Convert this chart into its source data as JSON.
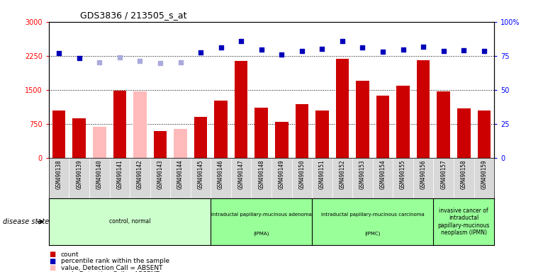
{
  "title": "GDS3836 / 213505_s_at",
  "samples": [
    "GSM490138",
    "GSM490139",
    "GSM490140",
    "GSM490141",
    "GSM490142",
    "GSM490143",
    "GSM490144",
    "GSM490145",
    "GSM490146",
    "GSM490147",
    "GSM490148",
    "GSM490149",
    "GSM490150",
    "GSM490151",
    "GSM490152",
    "GSM490153",
    "GSM490154",
    "GSM490155",
    "GSM490156",
    "GSM490157",
    "GSM490158",
    "GSM490159"
  ],
  "count_values": [
    1050,
    870,
    null,
    1480,
    null,
    590,
    null,
    900,
    1260,
    2130,
    1100,
    790,
    1180,
    1050,
    2190,
    1700,
    1370,
    1590,
    2150,
    1460,
    1090,
    1050
  ],
  "absent_value_values": [
    null,
    null,
    680,
    null,
    1460,
    null,
    640,
    null,
    null,
    null,
    null,
    null,
    null,
    null,
    null,
    null,
    null,
    null,
    null,
    null,
    null,
    null
  ],
  "percentile_values": [
    2310,
    2200,
    null,
    null,
    null,
    null,
    null,
    2320,
    2440,
    2580,
    2380,
    2270,
    2350,
    2400,
    2570,
    2440,
    2340,
    2380,
    2450,
    2350,
    2370,
    2350
  ],
  "absent_rank_values": [
    null,
    null,
    2100,
    2220,
    2130,
    2090,
    2110,
    null,
    null,
    null,
    null,
    null,
    null,
    null,
    null,
    null,
    null,
    null,
    null,
    null,
    null,
    null
  ],
  "bar_color_normal": "#cc0000",
  "bar_color_absent": "#ffbbbb",
  "dot_color_normal": "#0000bb",
  "dot_color_absent": "#aaaadd",
  "ylim_left": [
    0,
    3000
  ],
  "ylim_right": [
    0,
    100
  ],
  "yticks_left": [
    0,
    750,
    1500,
    2250,
    3000
  ],
  "yticks_right": [
    0,
    25,
    50,
    75,
    100
  ],
  "group_boundaries": [
    {
      "start": 0,
      "end": 7,
      "color": "#ccffcc",
      "label": "control, normal",
      "label2": ""
    },
    {
      "start": 8,
      "end": 12,
      "color": "#99ff99",
      "label": "intraductal papillary-mucinous adenoma",
      "label2": "(IPMA)"
    },
    {
      "start": 13,
      "end": 18,
      "color": "#99ff99",
      "label": "intraductal papillary-mucinous carcinoma",
      "label2": "(IPMC)"
    },
    {
      "start": 19,
      "end": 21,
      "color": "#99ff99",
      "label": "invasive cancer of\nintraductal\npapillary-mucinous\nneoplasm (IPMN)",
      "label2": ""
    }
  ],
  "disease_state_label": "disease state",
  "background_color": "#ffffff",
  "plot_bg_color": "#ffffff",
  "label_bg_color": "#d8d8d8"
}
